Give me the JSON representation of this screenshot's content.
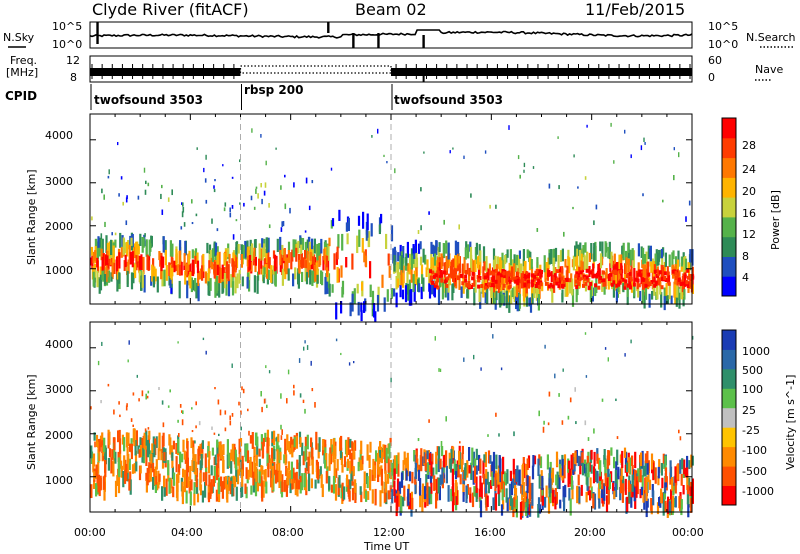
{
  "header": {
    "station": "Clyde River (fitACF)",
    "beam": "Beam 02",
    "date": "11/Feb/2015"
  },
  "aux": {
    "nsky_label": "N.Sky",
    "nsky_ticks": [
      "10^5",
      "10^0"
    ],
    "nsearch_label": "N.Search",
    "nsearch_ticks": [
      "10^5",
      "10^0"
    ],
    "freq_label_1": "Freq.",
    "freq_label_2": "[MHz]",
    "freq_ticks": [
      "12",
      "8"
    ],
    "nave_label": "Nave",
    "nave_ticks": [
      "60",
      "0"
    ],
    "cpid_label": "CPID"
  },
  "cpid_segments": [
    {
      "name": "twofsound 3503",
      "start": 0,
      "end": 6
    },
    {
      "name": "rbsp 200",
      "start": 6,
      "end": 12
    },
    {
      "name": "twofsound 3503",
      "start": 12,
      "end": 24
    }
  ],
  "colors": {
    "power_scale": [
      "#0000ff",
      "#1f4fbf",
      "#2e8b57",
      "#55b24a",
      "#c8d23c",
      "#ffb400",
      "#ff7800",
      "#ff3c00",
      "#ff0000"
    ],
    "velocity_scale": [
      "#1a3cb4",
      "#2a68a8",
      "#2f8f6a",
      "#5cc04a",
      "#c0c0c0",
      "#ffc400",
      "#ff8a00",
      "#ff5000",
      "#ff0000"
    ]
  },
  "chart_data": [
    {
      "type": "heatmap",
      "panel": "power",
      "xlabel": "",
      "ylabel": "Slant Range [km]",
      "xlim": [
        0,
        24
      ],
      "ylim": [
        180,
        4600
      ],
      "yticks": [
        "1000",
        "2000",
        "3000",
        "4000"
      ],
      "colorbar": {
        "label": "Power [dB]",
        "ticks": [
          "28",
          "24",
          "20",
          "16",
          "12",
          "8",
          "4"
        ],
        "range": [
          0,
          30
        ]
      },
      "bands": [
        {
          "t0": 0.0,
          "t1": 6.0,
          "r0": 700,
          "r1": 1700,
          "level": "strong"
        },
        {
          "t0": 6.0,
          "t1": 9.5,
          "r0": 750,
          "r1": 1650,
          "level": "strong"
        },
        {
          "t0": 9.5,
          "t1": 12.0,
          "r0": 500,
          "r1": 2200,
          "level": "sparse"
        },
        {
          "t0": 12.0,
          "t1": 13.8,
          "r0": 450,
          "r1": 1600,
          "level": "moderate"
        },
        {
          "t0": 13.8,
          "t1": 24.0,
          "r0": 400,
          "r1": 1550,
          "level": "strong"
        }
      ],
      "high_range_patch": {
        "t0": 0.0,
        "t1": 7.5,
        "r0": 1600,
        "r1": 3300
      }
    },
    {
      "type": "heatmap",
      "panel": "velocity",
      "xlabel": "Time UT",
      "ylabel": "Slant Range [km]",
      "xlim": [
        0,
        24
      ],
      "ylim": [
        180,
        4600
      ],
      "x_ticks": [
        "00:00",
        "04:00",
        "08:00",
        "12:00",
        "16:00",
        "20:00",
        "00:00"
      ],
      "yticks": [
        "1000",
        "2000",
        "3000",
        "4000"
      ],
      "colorbar": {
        "label": "Velocity [m s^-1]",
        "ticks": [
          "1000",
          "500",
          "100",
          "25",
          "-25",
          "-100",
          "-500",
          "-1000"
        ],
        "range": [
          -1000,
          1000
        ]
      },
      "bands": [
        {
          "t0": 0.0,
          "t1": 12.0,
          "r0": 700,
          "r1": 2000,
          "level": "negative"
        },
        {
          "t0": 12.0,
          "t1": 24.0,
          "r0": 400,
          "r1": 1600,
          "level": "mixed"
        }
      ]
    }
  ]
}
